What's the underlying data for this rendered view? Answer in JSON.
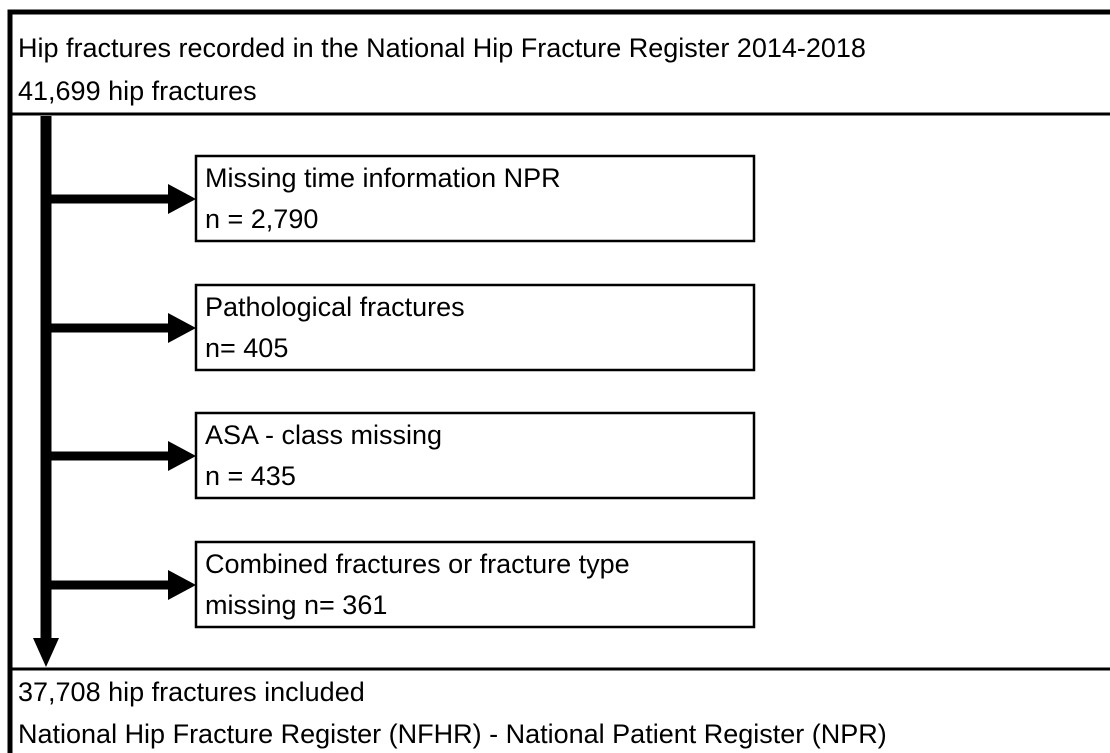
{
  "header": {
    "title": "Hip fractures recorded in the National Hip Fracture Register 2014-2018",
    "count": "41,699 hip fractures"
  },
  "exclusions": [
    {
      "label": "Missing time information NPR",
      "count": "n = 2,790"
    },
    {
      "label": "Pathological fractures",
      "count": "n= 405"
    },
    {
      "label": "ASA - class missing",
      "count": "n = 435"
    },
    {
      "label": "Combined fractures or fracture type",
      "count": "missing n= 361"
    }
  ],
  "footer": {
    "count": "37,708 hip fractures included",
    "source": "National Hip Fracture Register (NFHR) - National Patient Register (NPR)"
  }
}
